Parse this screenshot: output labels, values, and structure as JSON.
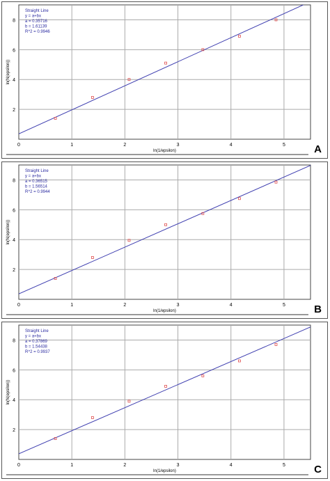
{
  "panels": [
    {
      "letter": "A"
    },
    {
      "letter": "B"
    },
    {
      "letter": "C"
    }
  ],
  "chart_data": [
    {
      "type": "scatter",
      "panel": "A",
      "xlabel": "ln(1/epsilon)",
      "ylabel": "ln(N(epsilon))",
      "xlim": [
        0,
        5.5
      ],
      "ylim": [
        0,
        9
      ],
      "xticks": [
        0,
        1,
        2,
        3,
        4,
        5
      ],
      "yticks": [
        2,
        4,
        6,
        8
      ],
      "grid": true,
      "legend_placement": "top-left",
      "annotation": [
        "Straight Line",
        "y = a+bx",
        "a = 0.35716",
        "b = 1.61139",
        "R^2 = 0.9946"
      ],
      "fit": {
        "a": 0.35716,
        "b": 1.61139
      },
      "x": [
        0.69,
        1.39,
        2.08,
        2.77,
        3.47,
        4.16,
        4.85
      ],
      "y": [
        1.4,
        2.8,
        4.0,
        5.1,
        6.0,
        6.9,
        8.0
      ],
      "colors": {
        "points": "#e05050",
        "line": "#3f3fb0"
      }
    },
    {
      "type": "scatter",
      "panel": "B",
      "xlabel": "ln(1/epsilon)",
      "ylabel": "ln(N(epsilon))",
      "xlim": [
        0,
        5.5
      ],
      "ylim": [
        0,
        9
      ],
      "xticks": [
        0,
        1,
        2,
        3,
        4,
        5
      ],
      "yticks": [
        2,
        4,
        6,
        8
      ],
      "grid": true,
      "legend_placement": "top-left",
      "annotation": [
        "Straight Line",
        "y = a+bx",
        "a = 0.36515",
        "b = 1.56514",
        "R^2 = 0.9944"
      ],
      "fit": {
        "a": 0.36515,
        "b": 1.56514
      },
      "x": [
        0.69,
        1.39,
        2.08,
        2.77,
        3.47,
        4.16,
        4.85
      ],
      "y": [
        1.4,
        2.8,
        3.95,
        5.0,
        5.75,
        6.75,
        7.85
      ],
      "colors": {
        "points": "#e05050",
        "line": "#3f3fb0"
      }
    },
    {
      "type": "scatter",
      "panel": "C",
      "xlabel": "ln(1/epsilon)",
      "ylabel": "ln(N(epsilon))",
      "xlim": [
        0,
        5.5
      ],
      "ylim": [
        0,
        9
      ],
      "xticks": [
        0,
        1,
        2,
        3,
        4,
        5
      ],
      "yticks": [
        2,
        4,
        6,
        8
      ],
      "grid": true,
      "legend_placement": "top-left",
      "annotation": [
        "Straight Line",
        "y = a+bx",
        "a = 0.37869",
        "b = 1.54438",
        "R^2 = 0.9937"
      ],
      "fit": {
        "a": 0.37869,
        "b": 1.54438
      },
      "x": [
        0.69,
        1.39,
        2.08,
        2.77,
        3.47,
        4.16,
        4.85
      ],
      "y": [
        1.4,
        2.8,
        3.9,
        4.9,
        5.6,
        6.6,
        7.7
      ],
      "colors": {
        "points": "#e05050",
        "line": "#3f3fb0"
      }
    }
  ]
}
